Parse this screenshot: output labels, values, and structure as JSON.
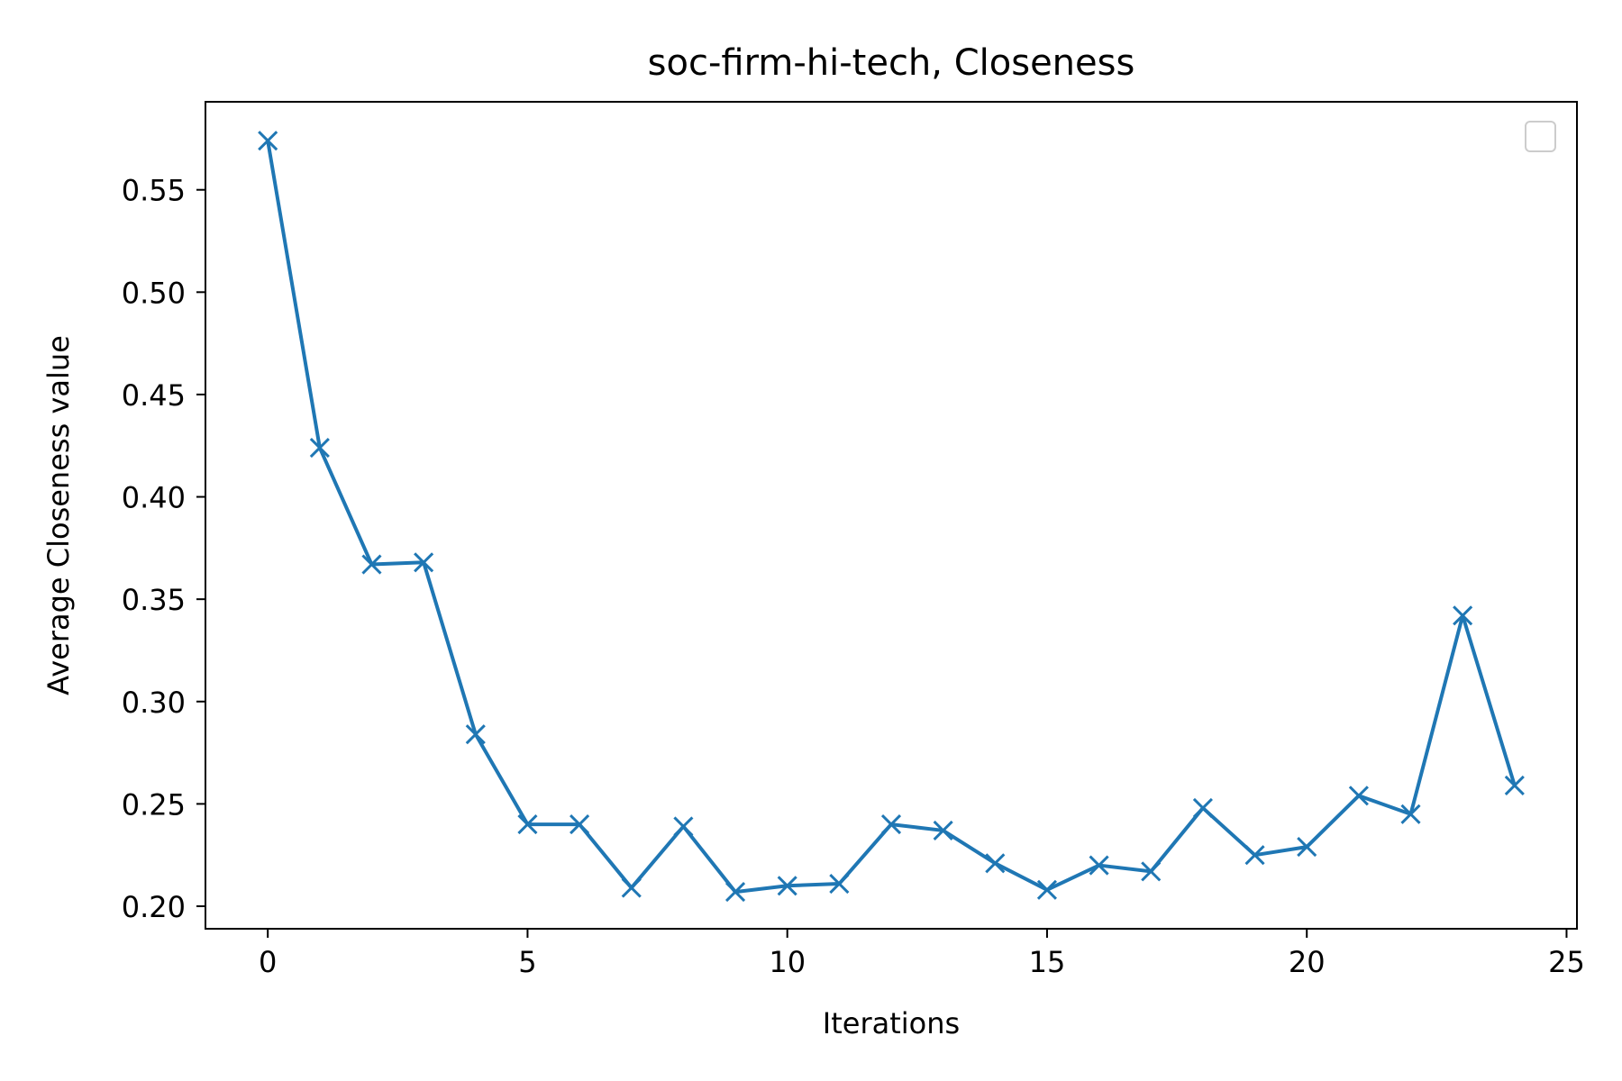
{
  "chart_data": {
    "type": "line",
    "title": "soc-firm-hi-tech, Closeness",
    "xlabel": "Iterations",
    "ylabel": "Average Closeness value",
    "x": [
      0,
      1,
      2,
      3,
      4,
      5,
      6,
      7,
      8,
      9,
      10,
      11,
      12,
      13,
      14,
      15,
      16,
      17,
      18,
      19,
      20,
      21,
      22,
      23,
      24
    ],
    "series": [
      {
        "values": [
          0.574,
          0.424,
          0.367,
          0.368,
          0.284,
          0.24,
          0.24,
          0.209,
          0.239,
          0.207,
          0.21,
          0.211,
          0.24,
          0.237,
          0.221,
          0.208,
          0.22,
          0.217,
          0.248,
          0.225,
          0.229,
          0.254,
          0.245,
          0.342,
          0.259
        ],
        "color": "#1f77b4",
        "marker": "x"
      }
    ],
    "xlim": [
      -1.2,
      25.2
    ],
    "ylim": [
      0.189,
      0.593
    ],
    "xticks": [
      0,
      5,
      10,
      15,
      20,
      25
    ],
    "xtick_labels": [
      "0",
      "5",
      "10",
      "15",
      "20",
      "25"
    ],
    "yticks": [
      0.2,
      0.25,
      0.3,
      0.35,
      0.4,
      0.45,
      0.5,
      0.55
    ],
    "ytick_labels": [
      "0.20",
      "0.25",
      "0.30",
      "0.35",
      "0.40",
      "0.45",
      "0.50",
      "0.55"
    ],
    "grid": false,
    "legend": {
      "placement": "top-right",
      "entries": []
    }
  }
}
